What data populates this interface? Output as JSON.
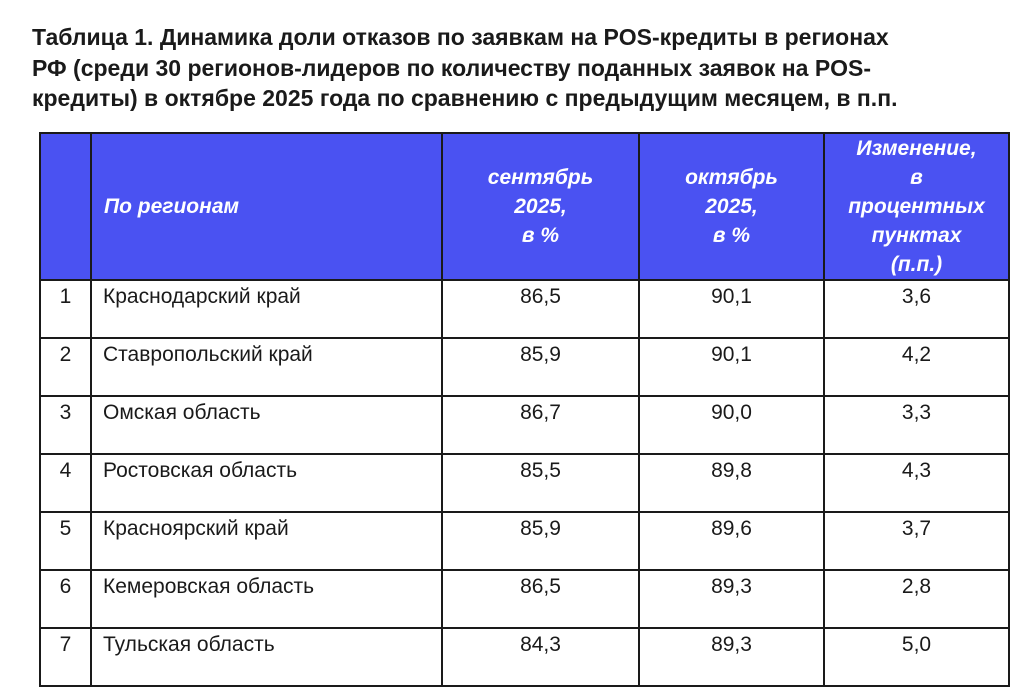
{
  "title": {
    "line1": "Таблица 1. Динамика доли отказов по заявкам на POS-кредиты в регионах",
    "line2": "РФ (среди 30 регионов-лидеров по количеству поданных заявок на POS-",
    "line3": "кредиты) в октябре 2025 года по сравнению с предыдущим месяцем, в п.п."
  },
  "table": {
    "headers": {
      "num": "",
      "region": "По регионам",
      "sep": [
        "сентябрь",
        "2025,",
        "в %"
      ],
      "oct": [
        "октябрь",
        "2025,",
        "в %"
      ],
      "chg": [
        "Изменение,",
        "в",
        "процентных",
        "пунктах",
        "(п.п.)"
      ]
    },
    "rows": [
      {
        "num": "1",
        "region": "Краснодарский край",
        "sep": "86,5",
        "oct": "90,1",
        "chg": "3,6"
      },
      {
        "num": "2",
        "region": "Ставропольский край",
        "sep": "85,9",
        "oct": "90,1",
        "chg": "4,2"
      },
      {
        "num": "3",
        "region": "Омская область",
        "sep": "86,7",
        "oct": "90,0",
        "chg": "3,3"
      },
      {
        "num": "4",
        "region": "Ростовская область",
        "sep": "85,5",
        "oct": "89,8",
        "chg": "4,3"
      },
      {
        "num": "5",
        "region": "Красноярский край",
        "sep": "85,9",
        "oct": "89,6",
        "chg": "3,7"
      },
      {
        "num": "6",
        "region": "Кемеровская область",
        "sep": "86,5",
        "oct": "89,3",
        "chg": "2,8"
      },
      {
        "num": "7",
        "region": "Тульская область",
        "sep": "84,3",
        "oct": "89,3",
        "chg": "5,0"
      }
    ]
  },
  "colors": {
    "header_bg": "#4a52f2",
    "header_text": "#ffffff",
    "border": "#1a1a1a"
  }
}
